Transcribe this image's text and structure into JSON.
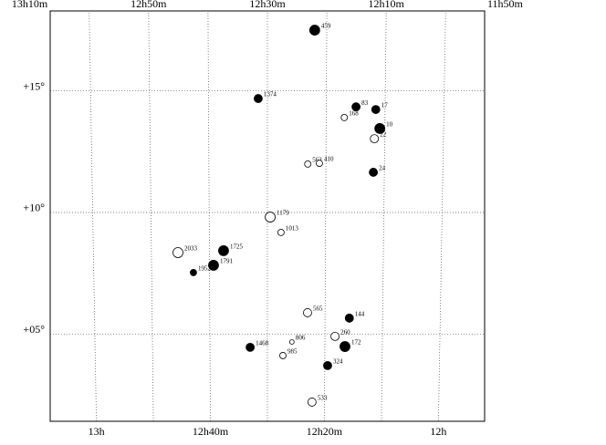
{
  "chart_data": {
    "type": "scatter",
    "xlim": [
      13.135,
      11.865
    ],
    "ylim": [
      1.42,
      18.28
    ],
    "xticks": [
      {
        "value": 13,
        "label": "13h"
      },
      {
        "value": 12.6667,
        "label": "12h40m"
      },
      {
        "value": 12.3333,
        "label": "12h20m"
      },
      {
        "value": 12,
        "label": "12h"
      }
    ],
    "x2ticks": [
      {
        "value": 13.1667,
        "label": "13h10m"
      },
      {
        "value": 12.8333,
        "label": "12h50m"
      },
      {
        "value": 12.5,
        "label": "12h30m"
      },
      {
        "value": 12.1667,
        "label": "12h10m"
      },
      {
        "value": 11.8333,
        "label": "11h50m"
      }
    ],
    "yticks": [
      {
        "value": 5,
        "label": "+05°"
      },
      {
        "value": 10,
        "label": "+10°"
      },
      {
        "value": 15,
        "label": "+15°"
      }
    ],
    "grid": true,
    "points": [
      {
        "name": "459",
        "ra": 12.367,
        "dec": 17.49,
        "filled": true,
        "size": 4
      },
      {
        "name": "1374",
        "ra": 12.526,
        "dec": 14.68,
        "filled": true,
        "size": 3
      },
      {
        "name": "83",
        "ra": 12.249,
        "dec": 14.34,
        "filled": true,
        "size": 3
      },
      {
        "name": "17",
        "ra": 12.193,
        "dec": 14.23,
        "filled": true,
        "size": 3
      },
      {
        "name": "168",
        "ra": 12.282,
        "dec": 13.9,
        "filled": false,
        "size": 2
      },
      {
        "name": "10",
        "ra": 12.181,
        "dec": 13.45,
        "filled": true,
        "size": 4
      },
      {
        "name": "22",
        "ra": 12.196,
        "dec": 13.03,
        "filled": false,
        "size": 3
      },
      {
        "name": "562",
        "ra": 12.385,
        "dec": 11.99,
        "filled": false,
        "size": 2
      },
      {
        "name": "410",
        "ra": 12.352,
        "dec": 12.02,
        "filled": false,
        "size": 2
      },
      {
        "name": "24",
        "ra": 12.198,
        "dec": 11.65,
        "filled": true,
        "size": 3
      },
      {
        "name": "1179",
        "ra": 12.492,
        "dec": 9.81,
        "filled": false,
        "size": 4
      },
      {
        "name": "1013",
        "ra": 12.461,
        "dec": 9.18,
        "filled": false,
        "size": 2
      },
      {
        "name": "2033",
        "ra": 12.757,
        "dec": 8.35,
        "filled": false,
        "size": 4
      },
      {
        "name": "1725",
        "ra": 12.626,
        "dec": 8.43,
        "filled": true,
        "size": 4
      },
      {
        "name": "1791",
        "ra": 12.655,
        "dec": 7.83,
        "filled": true,
        "size": 4
      },
      {
        "name": "1952",
        "ra": 12.713,
        "dec": 7.53,
        "filled": true,
        "size": 2
      },
      {
        "name": "565",
        "ra": 12.384,
        "dec": 5.88,
        "filled": false,
        "size": 3
      },
      {
        "name": "144",
        "ra": 12.263,
        "dec": 5.66,
        "filled": true,
        "size": 3
      },
      {
        "name": "260",
        "ra": 12.304,
        "dec": 4.91,
        "filled": false,
        "size": 3
      },
      {
        "name": "172",
        "ra": 12.275,
        "dec": 4.49,
        "filled": true,
        "size": 4
      },
      {
        "name": "1468",
        "ra": 12.55,
        "dec": 4.46,
        "filled": true,
        "size": 3
      },
      {
        "name": "806",
        "ra": 12.429,
        "dec": 4.68,
        "filled": false,
        "size": 1
      },
      {
        "name": "985",
        "ra": 12.455,
        "dec": 4.12,
        "filled": false,
        "size": 2
      },
      {
        "name": "324",
        "ra": 12.325,
        "dec": 3.71,
        "filled": true,
        "size": 3
      },
      {
        "name": "533",
        "ra": 12.37,
        "dec": 2.21,
        "filled": false,
        "size": 3
      }
    ]
  }
}
